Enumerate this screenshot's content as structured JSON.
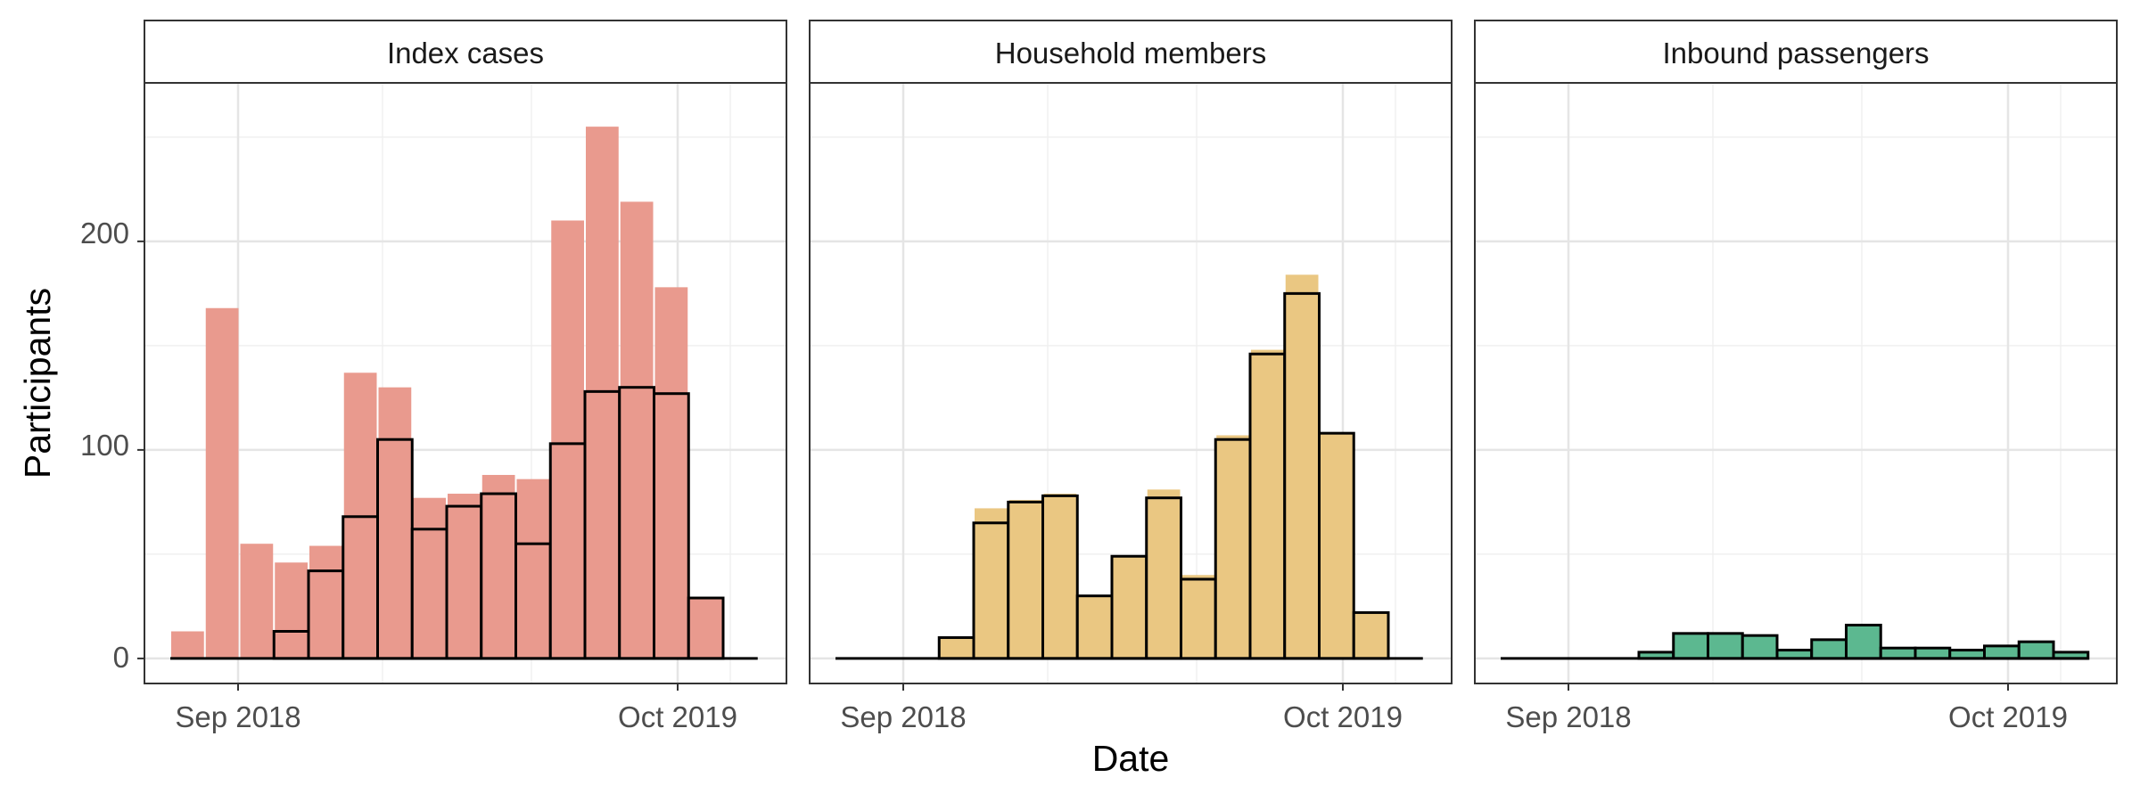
{
  "axis": {
    "xlabel": "Date",
    "ylabel": "Participants",
    "x_ticks": [
      "Sep 2018",
      "Oct 2019"
    ],
    "y_ticks": [
      "0",
      "100",
      "200"
    ]
  },
  "chart_data": [
    {
      "type": "bar",
      "facet": "Index cases",
      "x": [
        "2018-08",
        "2018-09",
        "2018-10",
        "2018-11",
        "2018-12",
        "2019-01",
        "2019-02",
        "2019-03",
        "2019-04",
        "2019-05",
        "2019-06",
        "2019-07",
        "2019-08",
        "2019-09",
        "2019-10",
        "2019-11",
        "2019-12"
      ],
      "series": [
        {
          "values": [
            13,
            168,
            55,
            46,
            54,
            137,
            130,
            77,
            79,
            88,
            86,
            210,
            255,
            219,
            178,
            null,
            null
          ]
        },
        {
          "values": [
            0,
            0,
            0,
            13,
            42,
            68,
            105,
            62,
            73,
            79,
            55,
            103,
            128,
            130,
            127,
            29,
            0
          ]
        }
      ],
      "ylim": [
        -12,
        276
      ],
      "grid": true,
      "colors": {
        "fill": "#E99A8E",
        "outline": "#000000"
      }
    },
    {
      "type": "bar",
      "facet": "Household members",
      "x": [
        "2018-08",
        "2018-09",
        "2018-10",
        "2018-11",
        "2018-12",
        "2019-01",
        "2019-02",
        "2019-03",
        "2019-04",
        "2019-05",
        "2019-06",
        "2019-07",
        "2019-08",
        "2019-09",
        "2019-10",
        "2019-11",
        "2019-12"
      ],
      "series": [
        {
          "values": [
            null,
            null,
            null,
            10,
            72,
            76,
            79,
            30,
            49,
            81,
            40,
            107,
            148,
            184,
            108,
            22,
            null
          ]
        },
        {
          "values": [
            0,
            0,
            0,
            10,
            65,
            75,
            78,
            30,
            49,
            77,
            38,
            105,
            146,
            175,
            108,
            22,
            0
          ]
        }
      ],
      "ylim": [
        -12,
        276
      ],
      "grid": true,
      "colors": {
        "fill": "#EAC782",
        "outline": "#000000"
      }
    },
    {
      "type": "bar",
      "facet": "Inbound passengers",
      "x": [
        "2018-08",
        "2018-09",
        "2018-10",
        "2018-11",
        "2018-12",
        "2019-01",
        "2019-02",
        "2019-03",
        "2019-04",
        "2019-05",
        "2019-06",
        "2019-07",
        "2019-08",
        "2019-09",
        "2019-10",
        "2019-11",
        "2019-12"
      ],
      "series": [
        {
          "values": [
            0,
            0,
            0,
            0,
            3,
            12,
            12,
            11,
            4,
            9,
            16,
            5,
            5,
            4,
            6,
            8,
            3
          ]
        }
      ],
      "ylim": [
        -12,
        276
      ],
      "grid": true,
      "colors": {
        "fill": "#5CB890",
        "outline": "#000000"
      }
    }
  ]
}
